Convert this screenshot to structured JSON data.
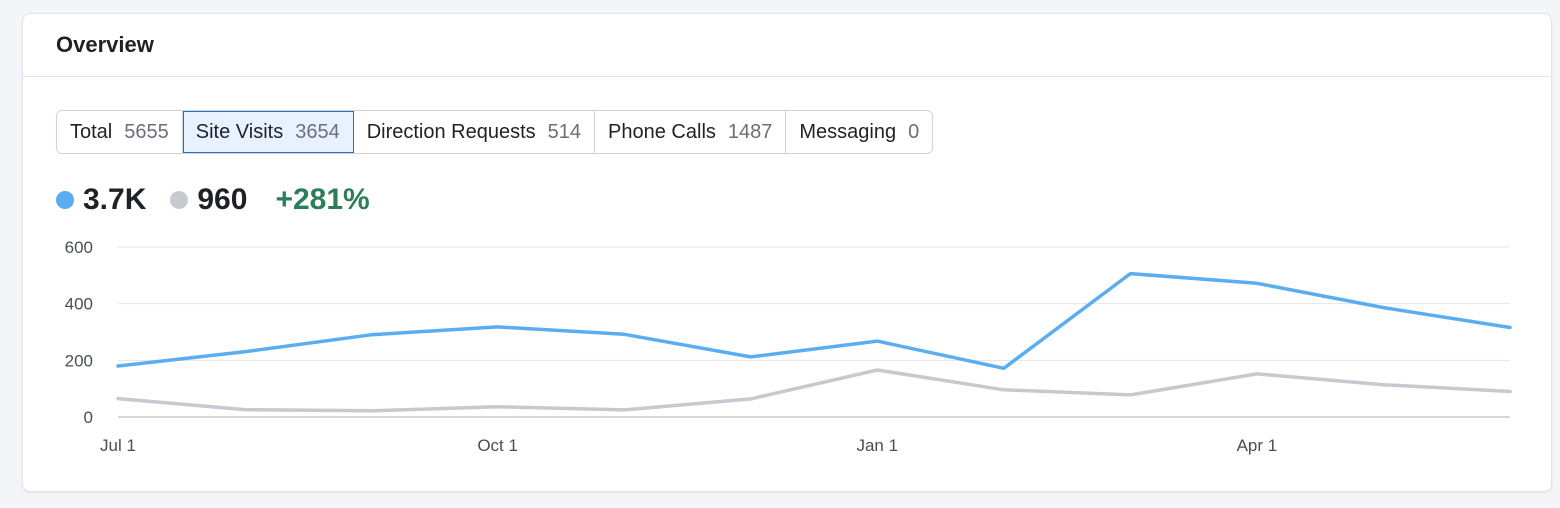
{
  "card": {
    "title": "Overview"
  },
  "tabs": [
    {
      "label": "Total",
      "count": "5655",
      "active": false
    },
    {
      "label": "Site Visits",
      "count": "3654",
      "active": true
    },
    {
      "label": "Direction Requests",
      "count": "514",
      "active": false
    },
    {
      "label": "Phone Calls",
      "count": "1487",
      "active": false
    },
    {
      "label": "Messaging",
      "count": "0",
      "active": false
    }
  ],
  "summary": {
    "current_value": "3.7K",
    "previous_value": "960",
    "change": "+281%"
  },
  "colors": {
    "current": "#5aaef0",
    "previous": "#c7c9d0",
    "positive": "#2e7d59",
    "active_tab_bg": "#e8f1ff",
    "active_tab_border": "#2f6fb8"
  },
  "chart_data": {
    "type": "line",
    "x": [
      "Jul 1",
      "Aug 1",
      "Sep 1",
      "Oct 1",
      "Nov 1",
      "Dec 1",
      "Jan 1",
      "Feb 1",
      "Mar 1",
      "Apr 1",
      "May 1",
      "Jun 1"
    ],
    "x_tick_labels": [
      "Jul 1",
      "Oct 1",
      "Jan 1",
      "Apr 1"
    ],
    "y_ticks": [
      0,
      200,
      400,
      600
    ],
    "ylim": [
      0,
      600
    ],
    "grid": true,
    "series": [
      {
        "key": "current",
        "values": [
          180,
          230,
          290,
          318,
          292,
          212,
          268,
          172,
          506,
          472,
          386,
          316
        ]
      },
      {
        "key": "previous",
        "values": [
          65,
          26,
          22,
          36,
          25,
          64,
          166,
          96,
          78,
          152,
          114,
          90
        ]
      }
    ]
  }
}
